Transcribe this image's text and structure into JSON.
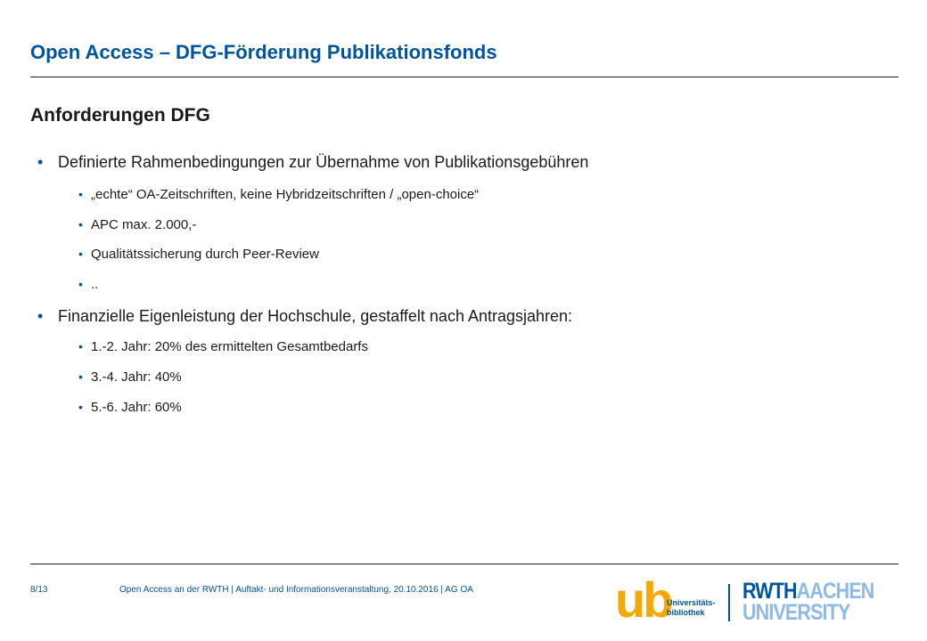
{
  "header": {
    "title": "Open Access – DFG-Förderung Publikationsfonds"
  },
  "section": {
    "heading": "Anforderungen DFG"
  },
  "bullets": [
    {
      "level": 1,
      "text": "Definierte Rahmenbedingungen zur Übernahme von Publikationsgebühren"
    },
    {
      "level": 2,
      "text": "„echte“ OA-Zeitschriften, keine Hybridzeitschriften / „open-choice“"
    },
    {
      "level": 2,
      "text": "APC max. 2.000,-"
    },
    {
      "level": 2,
      "text": "Qualitätssicherung durch Peer-Review"
    },
    {
      "level": 2,
      "text": ".."
    },
    {
      "level": 1,
      "text": "Finanzielle Eigenleistung der Hochschule, gestaffelt nach Antragsjahren:"
    },
    {
      "level": 2,
      "text": "1.-2. Jahr: 20% des ermittelten Gesamtbedarfs"
    },
    {
      "level": 2,
      "text": "3.-4. Jahr: 40%"
    },
    {
      "level": 2,
      "text": "5.-6. Jahr: 60%"
    }
  ],
  "footer": {
    "page": "8/13",
    "text": "Open Access an der RWTH | Auftakt- und Informationsveranstaltung, 20.10.2016 | AG OA"
  },
  "logos": {
    "ub": {
      "mark": "ub",
      "line1": "Universitäts-",
      "line2": "bibliothek"
    },
    "rwth": {
      "line1_strong": "RWTH",
      "line1_light": "AACHEN",
      "line2": "UNIVERSITY"
    }
  },
  "colors": {
    "brand_blue": "#00549f",
    "light_blue": "#8ebae5",
    "ub_orange": "#f6a800",
    "text": "#1a1a1a"
  }
}
